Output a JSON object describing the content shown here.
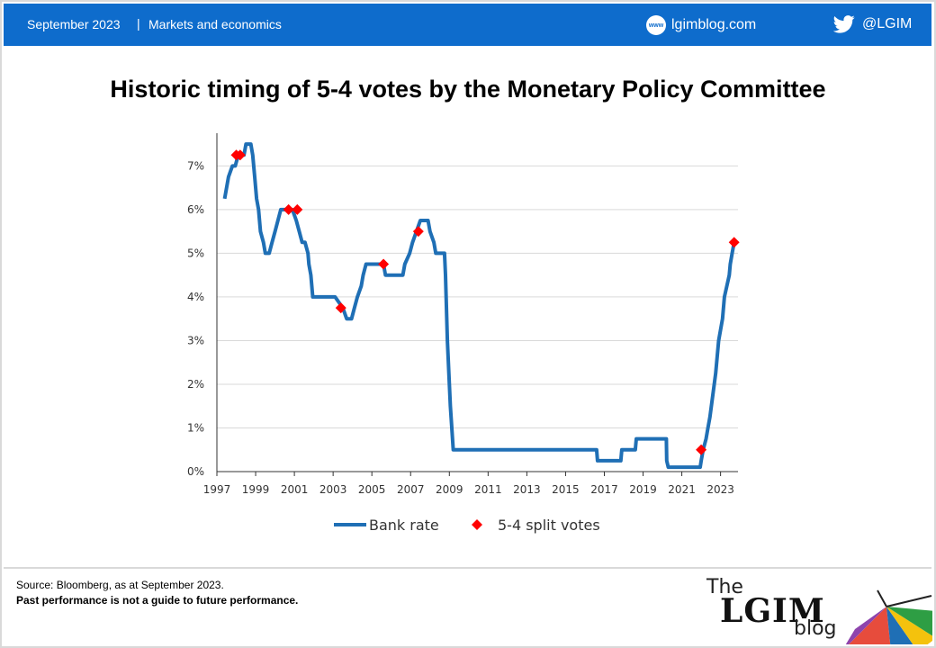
{
  "header": {
    "date": "September 2023",
    "separator": "|",
    "category": "Markets and economics",
    "website": "lgimblog.com",
    "website_icon_text": "www",
    "twitter_handle": "@LGIM",
    "background": "#0e6ccc"
  },
  "title": "Historic timing of 5-4 votes by the Monetary Policy Committee",
  "chart_data": {
    "type": "line",
    "title": "",
    "xlabel": "",
    "ylabel": "",
    "xlim": [
      1997,
      2023.9
    ],
    "ylim": [
      0,
      7.75
    ],
    "x_ticks": [
      1997,
      1999,
      2001,
      2003,
      2005,
      2007,
      2009,
      2011,
      2013,
      2015,
      2017,
      2019,
      2021,
      2023
    ],
    "x_tick_labels": [
      "1997",
      "1999",
      "2001",
      "2003",
      "2005",
      "2007",
      "2009",
      "2011",
      "2013",
      "2015",
      "2017",
      "2019",
      "2021",
      "2023"
    ],
    "y_ticks": [
      0,
      1,
      2,
      3,
      4,
      5,
      6,
      7
    ],
    "y_tick_labels": [
      "0%",
      "1%",
      "2%",
      "3%",
      "4%",
      "5%",
      "6%",
      "7%"
    ],
    "grid": "horizontal",
    "legend_position": "bottom",
    "series": [
      {
        "name": "Bank rate",
        "color": "#1f6fb5",
        "points": [
          [
            1997.4,
            6.25
          ],
          [
            1997.6,
            6.75
          ],
          [
            1997.8,
            7.0
          ],
          [
            1997.95,
            7.0
          ],
          [
            1998.1,
            7.25
          ],
          [
            1998.4,
            7.25
          ],
          [
            1998.5,
            7.5
          ],
          [
            1998.75,
            7.5
          ],
          [
            1998.85,
            7.25
          ],
          [
            1998.95,
            6.75
          ],
          [
            1999.05,
            6.25
          ],
          [
            1999.15,
            6.0
          ],
          [
            1999.25,
            5.5
          ],
          [
            1999.4,
            5.25
          ],
          [
            1999.5,
            5.0
          ],
          [
            1999.7,
            5.0
          ],
          [
            1999.85,
            5.25
          ],
          [
            2000.0,
            5.5
          ],
          [
            2000.15,
            5.75
          ],
          [
            2000.3,
            6.0
          ],
          [
            2000.9,
            6.0
          ],
          [
            2001.1,
            5.75
          ],
          [
            2001.25,
            5.5
          ],
          [
            2001.4,
            5.25
          ],
          [
            2001.55,
            5.25
          ],
          [
            2001.7,
            5.0
          ],
          [
            2001.75,
            4.75
          ],
          [
            2001.85,
            4.5
          ],
          [
            2001.95,
            4.0
          ],
          [
            2003.1,
            4.0
          ],
          [
            2003.5,
            3.75
          ],
          [
            2003.7,
            3.5
          ],
          [
            2003.95,
            3.5
          ],
          [
            2004.1,
            3.75
          ],
          [
            2004.25,
            4.0
          ],
          [
            2004.45,
            4.25
          ],
          [
            2004.55,
            4.5
          ],
          [
            2004.7,
            4.75
          ],
          [
            2005.6,
            4.75
          ],
          [
            2005.7,
            4.5
          ],
          [
            2006.6,
            4.5
          ],
          [
            2006.7,
            4.75
          ],
          [
            2006.95,
            5.0
          ],
          [
            2007.1,
            5.25
          ],
          [
            2007.3,
            5.5
          ],
          [
            2007.5,
            5.75
          ],
          [
            2007.9,
            5.75
          ],
          [
            2008.0,
            5.5
          ],
          [
            2008.2,
            5.25
          ],
          [
            2008.3,
            5.0
          ],
          [
            2008.75,
            5.0
          ],
          [
            2008.8,
            4.5
          ],
          [
            2008.9,
            3.0
          ],
          [
            2009.0,
            2.0
          ],
          [
            2009.05,
            1.5
          ],
          [
            2009.2,
            0.5
          ],
          [
            2016.6,
            0.5
          ],
          [
            2016.65,
            0.25
          ],
          [
            2017.85,
            0.25
          ],
          [
            2017.9,
            0.5
          ],
          [
            2018.6,
            0.5
          ],
          [
            2018.65,
            0.75
          ],
          [
            2020.2,
            0.75
          ],
          [
            2020.22,
            0.25
          ],
          [
            2020.3,
            0.1
          ],
          [
            2021.95,
            0.1
          ],
          [
            2022.0,
            0.25
          ],
          [
            2022.1,
            0.5
          ],
          [
            2022.25,
            0.75
          ],
          [
            2022.35,
            1.0
          ],
          [
            2022.45,
            1.25
          ],
          [
            2022.6,
            1.75
          ],
          [
            2022.75,
            2.25
          ],
          [
            2022.9,
            3.0
          ],
          [
            2023.1,
            3.5
          ],
          [
            2023.2,
            4.0
          ],
          [
            2023.45,
            4.5
          ],
          [
            2023.5,
            4.75
          ],
          [
            2023.6,
            5.0
          ],
          [
            2023.7,
            5.25
          ]
        ]
      },
      {
        "name": "5-4 split votes",
        "color": "#ff0000",
        "points": [
          [
            1998.0,
            7.25
          ],
          [
            1998.2,
            7.25
          ],
          [
            2000.7,
            6.0
          ],
          [
            2001.15,
            6.0
          ],
          [
            2003.4,
            3.75
          ],
          [
            2005.6,
            4.75
          ],
          [
            2007.4,
            5.5
          ],
          [
            2022.0,
            0.5
          ],
          [
            2023.7,
            5.25
          ]
        ]
      }
    ]
  },
  "footer": {
    "source": "Source: Bloomberg, as at September 2023.",
    "disclaimer": "Past performance is not a guide to future performance.",
    "logo": {
      "the": "The",
      "brand": "LGIM",
      "blog": "blog"
    }
  }
}
